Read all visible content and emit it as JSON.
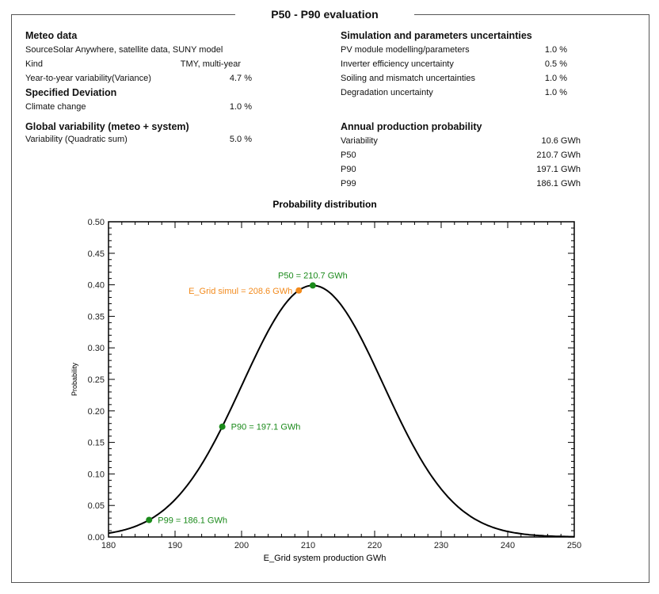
{
  "title": "P50 - P90 evaluation",
  "meteo": {
    "heading": "Meteo data",
    "source": "SourceSolar Anywhere, satellite data, SUNY model",
    "rows": [
      {
        "label": "Kind",
        "value": "TMY, multi-year"
      },
      {
        "label": "Year-to-year variability(Variance)",
        "value": "4.7 %"
      }
    ],
    "spec_heading": "Specified Deviation",
    "spec_rows": [
      {
        "label": "Climate change",
        "value": "1.0 %"
      }
    ]
  },
  "global": {
    "heading": "Global variability (meteo + system)",
    "rows": [
      {
        "label": "Variability (Quadratic sum)",
        "value": "5.0 %"
      }
    ]
  },
  "sim": {
    "heading": "Simulation and parameters uncertainties",
    "rows": [
      {
        "label": "PV module modelling/parameters",
        "value": "1.0 %"
      },
      {
        "label": "Inverter efficiency uncertainty",
        "value": "0.5 %"
      },
      {
        "label": "Soiling and mismatch uncertainties",
        "value": "1.0 %"
      },
      {
        "label": "Degradation uncertainty",
        "value": "1.0 %"
      }
    ]
  },
  "annual": {
    "heading": "Annual production probability",
    "rows": [
      {
        "label": "Variability",
        "value": "10.6 GWh"
      },
      {
        "label": "P50",
        "value": "210.7 GWh"
      },
      {
        "label": "P90",
        "value": "197.1 GWh"
      },
      {
        "label": "P99",
        "value": "186.1 GWh"
      }
    ]
  },
  "chart_data": {
    "type": "line",
    "title": "Probability distribution",
    "xlabel": "E_Grid system production GWh",
    "ylabel": "Probability",
    "xlim": [
      180,
      250
    ],
    "ylim": [
      0,
      0.5
    ],
    "xticks": [
      "180",
      "190",
      "200",
      "210",
      "220",
      "230",
      "240",
      "250"
    ],
    "yticks": [
      "0.00",
      "0.05",
      "0.10",
      "0.15",
      "0.20",
      "0.25",
      "0.30",
      "0.35",
      "0.40",
      "0.45",
      "0.50"
    ],
    "curve": {
      "mean": 210.7,
      "sigma": 10.6,
      "form": "standard normal density of (x-mean)/sigma"
    },
    "points": [
      {
        "label": "P50 = 210.7 GWh",
        "x": 210.7,
        "y": 0.399,
        "color": "#1a8a1a"
      },
      {
        "label": "E_Grid simul = 208.6 GWh",
        "x": 208.6,
        "y": 0.391,
        "color": "#f28a1c"
      },
      {
        "label": "P90 = 197.1 GWh",
        "x": 197.1,
        "y": 0.175,
        "color": "#1a8a1a"
      },
      {
        "label": "P99 = 186.1 GWh",
        "x": 186.1,
        "y": 0.027,
        "color": "#1a8a1a"
      }
    ]
  }
}
